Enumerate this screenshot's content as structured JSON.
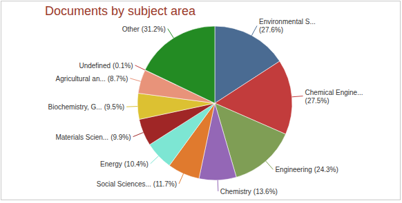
{
  "chart_data": {
    "type": "pie",
    "title": "Documents by subject area",
    "categories": [
      "Environmental S...",
      "Chemical Engine...",
      "Engineering",
      "Chemistry",
      "Social Sciences...",
      "Energy",
      "Materials Scien...",
      "Biochemistry, G...",
      "Agricultural an...",
      "Undefined",
      "Other"
    ],
    "values": [
      27.6,
      27.5,
      24.3,
      13.6,
      11.7,
      10.4,
      9.9,
      9.5,
      8.7,
      0.1,
      31.2
    ],
    "value_labels": [
      "(27.6%)",
      "(27.5%)",
      "(24.3%)",
      "(13.6%)",
      "(11.7%)",
      "(10.4%)",
      "(9.9%)",
      "(9.5%)",
      "(8.7%)",
      "(0.1%)",
      "(31.2%)"
    ],
    "colors": [
      "#4a6b92",
      "#c23c3c",
      "#7f9e55",
      "#9467b6",
      "#e07a2e",
      "#7de6d3",
      "#a02626",
      "#dcc132",
      "#e8937a",
      "#c23c3c",
      "#238b23"
    ],
    "data_labels": true
  }
}
